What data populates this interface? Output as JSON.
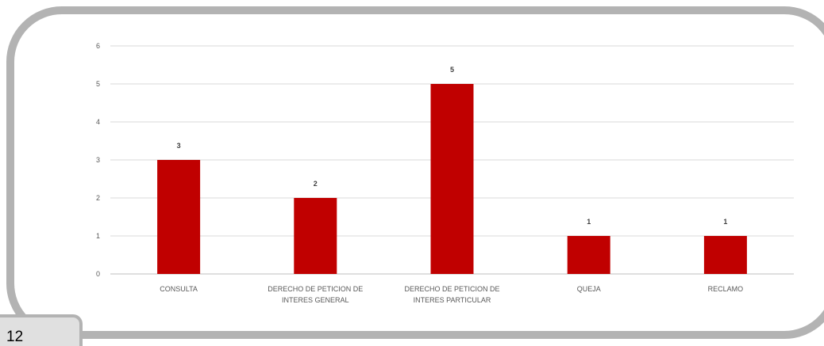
{
  "page": {
    "number": "12"
  },
  "colors": {
    "bar": "#c00000",
    "grid": "#d9d9d9",
    "frame": "#b3b3b3"
  },
  "chart_data": {
    "type": "bar",
    "categories": [
      "CONSULTA",
      "DERECHO DE PETICION DE INTERES GENERAL",
      "DERECHO DE PETICION DE INTERES PARTICULAR",
      "QUEJA",
      "RECLAMO"
    ],
    "category_lines": [
      [
        "CONSULTA"
      ],
      [
        "DERECHO DE PETICION DE",
        "INTERES GENERAL"
      ],
      [
        "DERECHO DE PETICION DE",
        "INTERES PARTICULAR"
      ],
      [
        "QUEJA"
      ],
      [
        "RECLAMO"
      ]
    ],
    "values": [
      3,
      2,
      5,
      1,
      1
    ],
    "data_labels": true,
    "ylim": [
      0,
      6
    ],
    "yticks": [
      0,
      1,
      2,
      3,
      4,
      5,
      6
    ],
    "grid": true,
    "legend": "none",
    "title": "",
    "xlabel": "",
    "ylabel": ""
  }
}
